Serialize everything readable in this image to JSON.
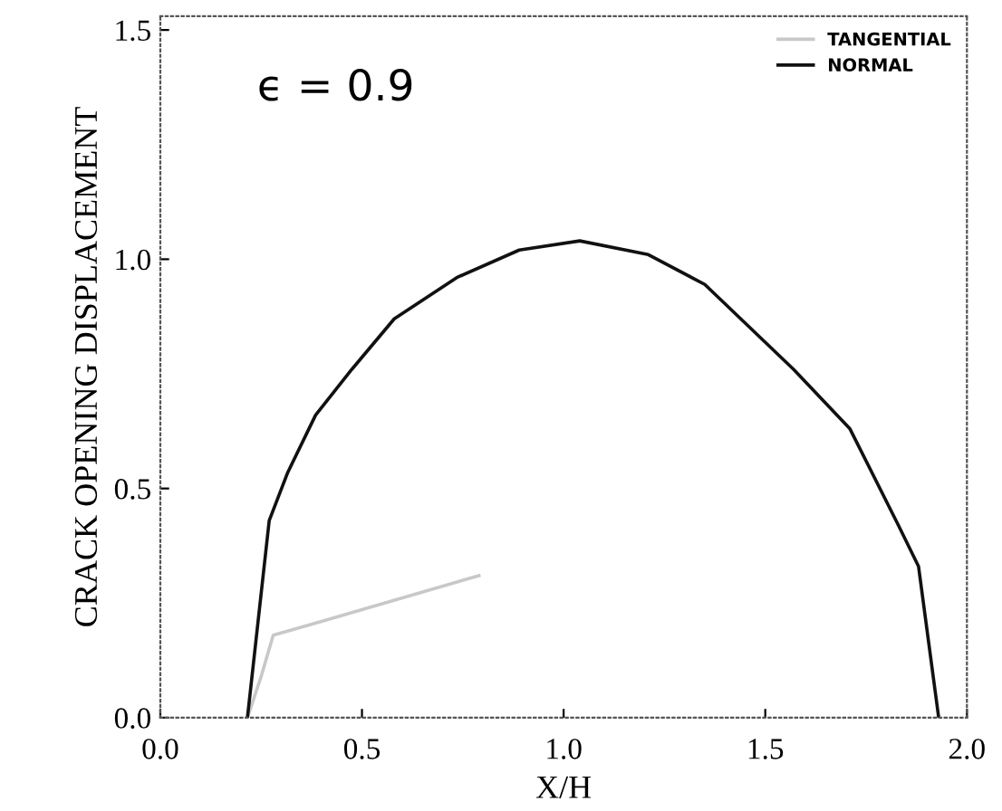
{
  "chart_data": {
    "type": "line",
    "xlabel": "X/H",
    "ylabel": "CRACK OPENING DISPLACEMENT",
    "annotations": [
      "ϵ = 0.9"
    ],
    "xlim": [
      0,
      2
    ],
    "xticks": [
      {
        "value": 0,
        "label": "0.0"
      },
      {
        "value": 0.5,
        "label": "0.5"
      },
      {
        "value": 1,
        "label": "1.0"
      },
      {
        "value": 1.5,
        "label": "1.5"
      },
      {
        "value": 2,
        "label": "2.0"
      }
    ],
    "ylim": [
      0,
      1.53
    ],
    "yticks": [
      {
        "value": 0,
        "label": "0.0"
      },
      {
        "value": 0.5,
        "label": "0.5"
      },
      {
        "value": 1,
        "label": "1.0"
      },
      {
        "value": 1.5,
        "label": "1.5"
      }
    ],
    "legend": "top right",
    "grid": false,
    "series": [
      {
        "name": "TANGENTIAL",
        "color": "#c8c8c8",
        "x": [
          0.216,
          0.25,
          0.28,
          0.4,
          0.79
        ],
        "values": [
          0,
          0.09,
          0.18,
          0.21,
          0.31
        ]
      },
      {
        "name": "NORMAL",
        "color": "#111111",
        "x": [
          0.216,
          0.27,
          0.316,
          0.385,
          0.475,
          0.58,
          0.735,
          0.89,
          1.04,
          1.21,
          1.35,
          1.57,
          1.71,
          1.83,
          1.88,
          1.93
        ],
        "values": [
          0,
          0.43,
          0.535,
          0.66,
          0.76,
          0.87,
          0.96,
          1.02,
          1.04,
          1.01,
          0.945,
          0.76,
          0.63,
          0.42,
          0.33,
          0
        ]
      }
    ]
  }
}
